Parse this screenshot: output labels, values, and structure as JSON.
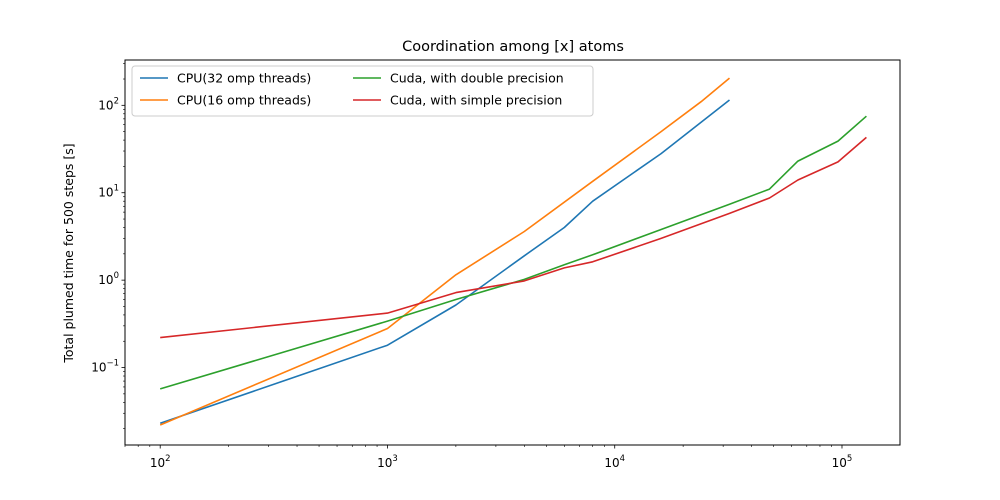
{
  "chart_data": {
    "type": "line",
    "title": "Coordination among [x] atoms",
    "xlabel": "",
    "ylabel": "Total plumed time for 500 steps [s]",
    "xscale": "log",
    "yscale": "log",
    "xlim": [
      70,
      180000
    ],
    "ylim": [
      0.013,
      330
    ],
    "x_major_ticks": [
      {
        "base": "10",
        "exp": "2",
        "value": 100
      },
      {
        "base": "10",
        "exp": "3",
        "value": 1000
      },
      {
        "base": "10",
        "exp": "4",
        "value": 10000
      },
      {
        "base": "10",
        "exp": "5",
        "value": 100000
      }
    ],
    "y_major_ticks": [
      {
        "base": "10",
        "exp": "−1",
        "value": 0.1
      },
      {
        "base": "10",
        "exp": "0",
        "value": 1
      },
      {
        "base": "10",
        "exp": "1",
        "value": 10
      },
      {
        "base": "10",
        "exp": "2",
        "value": 100
      }
    ],
    "grid": false,
    "legend": {
      "location": "upper left",
      "columns": 2
    },
    "series": [
      {
        "name": "CPU(32 omp threads)",
        "color": "#1f77b4",
        "x": [
          100,
          1000,
          2000,
          4000,
          6000,
          8000,
          16000,
          32000
        ],
        "y": [
          0.023,
          0.18,
          0.52,
          1.9,
          4.0,
          8.0,
          28,
          115
        ]
      },
      {
        "name": "CPU(16 omp threads)",
        "color": "#ff7f0e",
        "x": [
          100,
          1000,
          2000,
          4000,
          8000,
          16000,
          24000,
          32000
        ],
        "y": [
          0.022,
          0.28,
          1.15,
          3.6,
          13.5,
          50,
          110,
          205
        ]
      },
      {
        "name": "Cuda, with double precision",
        "color": "#2ca02c",
        "x": [
          100,
          1000,
          2000,
          4000,
          6000,
          8000,
          16000,
          32000,
          48000,
          64000,
          96000,
          128000
        ],
        "y": [
          0.057,
          0.34,
          0.6,
          1.02,
          1.5,
          1.95,
          3.8,
          7.4,
          11,
          23,
          39,
          75
        ]
      },
      {
        "name": "Cuda, with simple precision",
        "color": "#d62728",
        "x": [
          100,
          1000,
          2000,
          4000,
          6000,
          8000,
          16000,
          32000,
          48000,
          64000,
          96000,
          128000
        ],
        "y": [
          0.22,
          0.42,
          0.72,
          0.98,
          1.38,
          1.62,
          3.0,
          5.8,
          8.7,
          14,
          22.5,
          43
        ]
      }
    ]
  }
}
